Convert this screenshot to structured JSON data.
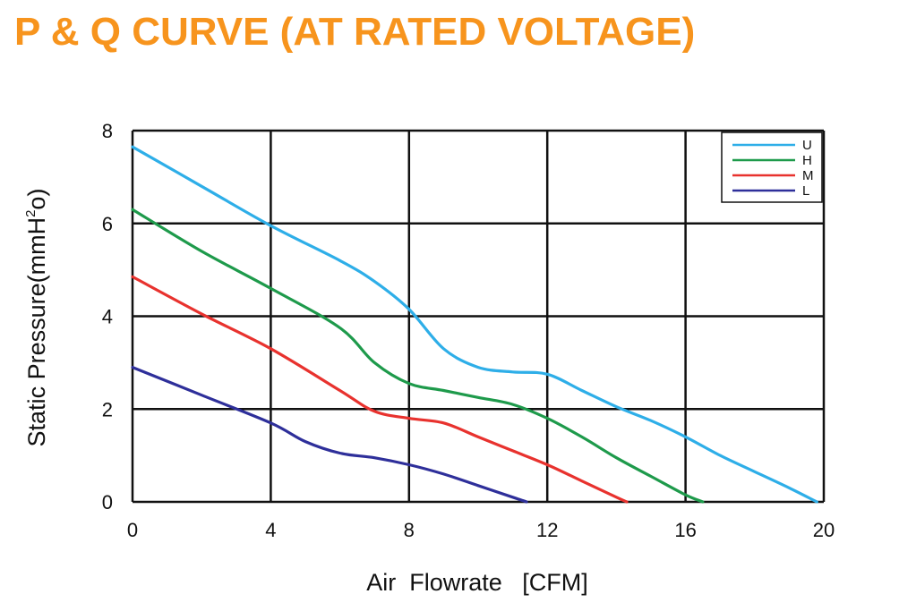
{
  "page": {
    "title": "P & Q CURVE (AT RATED VOLTAGE)"
  },
  "colors": {
    "title": "#f7941d",
    "grid": "#111111",
    "axis_text": "#111111"
  },
  "chart_data": {
    "type": "line",
    "title": "",
    "xlabel": "Air  Flowrate   [CFM]",
    "ylabel": "Static Pressure(mmH",
    "ylabel_superscript": "2",
    "ylabel_suffix": "o)",
    "xlim": [
      0,
      20
    ],
    "ylim": [
      0,
      8
    ],
    "x_ticks": [
      "0",
      "4",
      "8",
      "12",
      "16",
      "20"
    ],
    "y_ticks": [
      "0",
      "2",
      "4",
      "6",
      "8"
    ],
    "grid": true,
    "legend_position": "top-right",
    "series": [
      {
        "name": "U",
        "color": "#2eaee8",
        "x": [
          0,
          2,
          4,
          6,
          7,
          8,
          9,
          10,
          11,
          12,
          13,
          14,
          15,
          16,
          17,
          18,
          19,
          19.8
        ],
        "y": [
          7.65,
          6.8,
          5.95,
          5.2,
          4.75,
          4.15,
          3.3,
          2.9,
          2.8,
          2.75,
          2.4,
          2.05,
          1.75,
          1.4,
          1.0,
          0.65,
          0.3,
          0.0
        ]
      },
      {
        "name": "H",
        "color": "#1e9a4b",
        "x": [
          0,
          2,
          4,
          6,
          7,
          8,
          9,
          10,
          11,
          12,
          13,
          14,
          15,
          16,
          16.5
        ],
        "y": [
          6.3,
          5.4,
          4.6,
          3.75,
          3.0,
          2.55,
          2.4,
          2.25,
          2.1,
          1.8,
          1.4,
          0.95,
          0.55,
          0.15,
          0.0
        ]
      },
      {
        "name": "M",
        "color": "#e8322e",
        "x": [
          0,
          2,
          4,
          6,
          7,
          8,
          9,
          10,
          11,
          12,
          13,
          14,
          14.3
        ],
        "y": [
          4.85,
          4.05,
          3.3,
          2.4,
          1.95,
          1.8,
          1.7,
          1.4,
          1.1,
          0.8,
          0.45,
          0.1,
          0.0
        ]
      },
      {
        "name": "L",
        "color": "#2e2f9a",
        "x": [
          0,
          2,
          4,
          5,
          6,
          7,
          8,
          9,
          10,
          11,
          11.4
        ],
        "y": [
          2.9,
          2.3,
          1.7,
          1.3,
          1.05,
          0.95,
          0.8,
          0.6,
          0.35,
          0.1,
          0.0
        ]
      }
    ]
  }
}
